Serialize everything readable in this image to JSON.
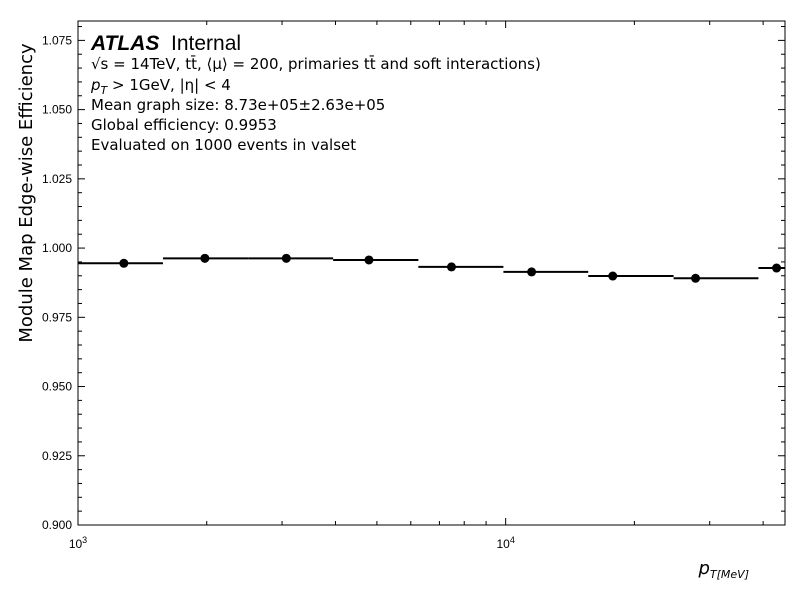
{
  "chart_data": {
    "type": "scatter",
    "title": "",
    "xlabel": "p_T[MeV]",
    "ylabel": "Module Map Edge-wise Efficiency",
    "xscale": "log",
    "xlim": [
      1000,
      45000
    ],
    "ylim": [
      0.9,
      1.082
    ],
    "grid": false,
    "y_ticks": [
      "0.900",
      "0.925",
      "0.950",
      "0.975",
      "1.000",
      "1.025",
      "1.050",
      "1.075"
    ],
    "x_ticks": [
      {
        "base": "10",
        "exp": "3"
      },
      {
        "base": "10",
        "exp": "4"
      }
    ],
    "bins": [
      {
        "low": 1000,
        "high": 1580,
        "center": 1280,
        "value": 0.9945
      },
      {
        "low": 1580,
        "high": 2500,
        "center": 1980,
        "value": 0.9963
      },
      {
        "low": 2500,
        "high": 3950,
        "center": 3070,
        "value": 0.9963
      },
      {
        "low": 3950,
        "high": 6250,
        "center": 4790,
        "value": 0.9957
      },
      {
        "low": 6250,
        "high": 9880,
        "center": 7470,
        "value": 0.9932
      },
      {
        "low": 9880,
        "high": 15600,
        "center": 11500,
        "value": 0.9914
      },
      {
        "low": 15600,
        "high": 24700,
        "center": 17800,
        "value": 0.9899
      },
      {
        "low": 24700,
        "high": 39000,
        "center": 27800,
        "value": 0.9891
      },
      {
        "low": 39000,
        "high": 61700,
        "center": 43000,
        "value": 0.9928
      }
    ],
    "annotations": {
      "brand": "ATLAS",
      "status": "Internal",
      "line1": "√s = 14TeV, tt̄, ⟨μ⟩ = 200, primaries tt̄ and soft interactions)",
      "line2": "p_T > 1GeV, |η| < 4",
      "line3": "Mean graph size: 8.73e+05±2.63e+05",
      "line4": "Global efficiency: 0.9953",
      "line5": "Evaluated on 1000 events in valset"
    }
  }
}
